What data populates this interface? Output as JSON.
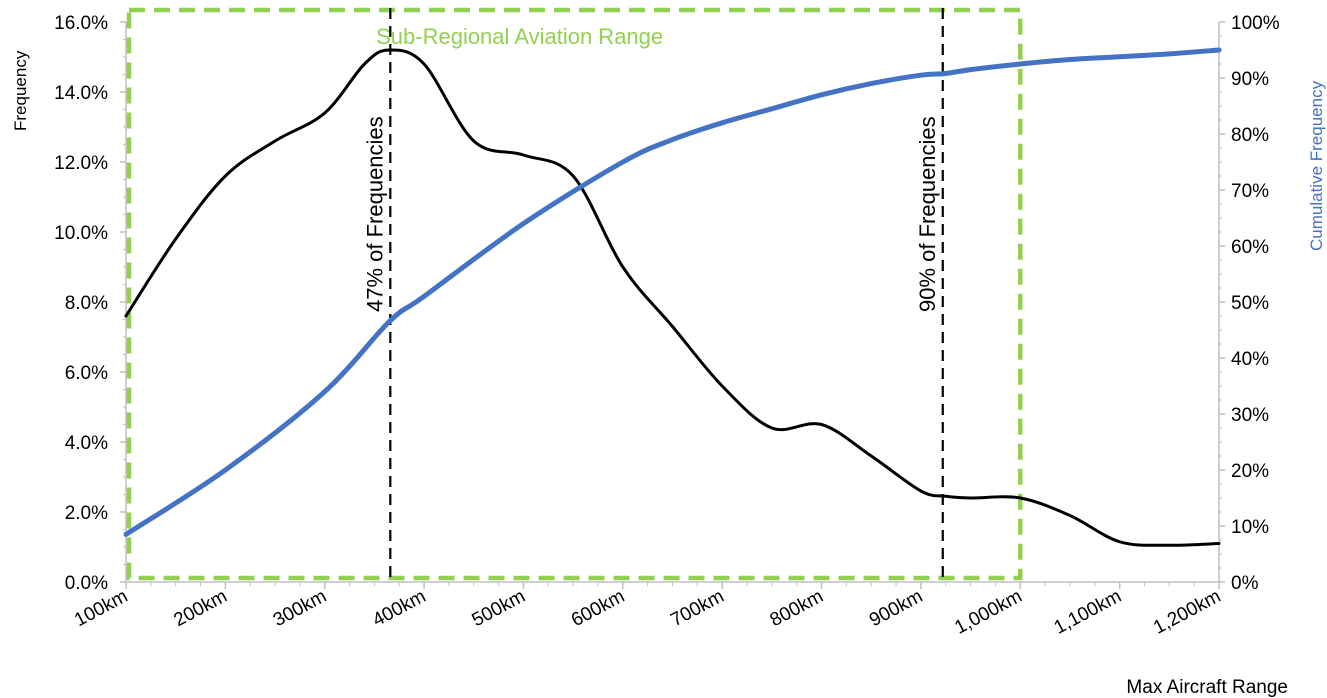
{
  "chart_data": {
    "type": "line",
    "xlabel": "Max Aircraft Range",
    "ylabel": "Frequency",
    "y2label": "Cumulative Frequency",
    "categories": [
      "100km",
      "200km",
      "300km",
      "400km",
      "500km",
      "600km",
      "700km",
      "800km",
      "900km",
      "1,000km",
      "1,100km",
      "1,200km"
    ],
    "xlim": [
      100,
      1200
    ],
    "ylim": [
      0,
      16
    ],
    "y2lim": [
      0,
      100
    ],
    "y_ticks": [
      "0.0%",
      "2.0%",
      "4.0%",
      "6.0%",
      "8.0%",
      "10.0%",
      "12.0%",
      "14.0%",
      "16.0%"
    ],
    "y2_ticks": [
      "0%",
      "10%",
      "20%",
      "30%",
      "40%",
      "50%",
      "60%",
      "70%",
      "80%",
      "90%",
      "100%"
    ],
    "grid": false,
    "series": [
      {
        "axis": "left",
        "color": "#000000",
        "x": [
          100,
          150,
          200,
          250,
          300,
          340,
          365,
          400,
          450,
          500,
          550,
          600,
          650,
          700,
          750,
          800,
          850,
          900,
          925,
          950,
          1000,
          1050,
          1100,
          1150,
          1200
        ],
        "y": [
          7.6,
          9.8,
          11.6,
          12.6,
          13.4,
          14.8,
          15.2,
          14.8,
          12.6,
          12.2,
          11.6,
          9.0,
          7.3,
          5.6,
          4.4,
          4.5,
          3.6,
          2.6,
          2.45,
          2.4,
          2.4,
          1.9,
          1.15,
          1.05,
          1.1
        ]
      },
      {
        "axis": "right",
        "color": "#4472c4",
        "x": [
          100,
          200,
          300,
          365,
          400,
          500,
          600,
          650,
          700,
          750,
          800,
          850,
          900,
          925,
          950,
          1000,
          1050,
          1100,
          1150,
          1200
        ],
        "y": [
          8.5,
          20,
          34,
          46.5,
          51,
          64,
          75,
          79,
          82,
          84.5,
          87,
          89,
          90.5,
          90.8,
          91.5,
          92.5,
          93.3,
          93.8,
          94.3,
          95
        ]
      }
    ],
    "vlines": [
      {
        "x": 366,
        "label": "47% of Frequencies"
      },
      {
        "x": 922,
        "label": "90% of Frequencies"
      }
    ],
    "region": {
      "x_start": 100,
      "x_end": 1000,
      "label": "Sub-Regional Aviation Range",
      "color": "#92d050"
    },
    "colors": {
      "left_axis_title": "#000000",
      "right_axis_title": "#4472c4",
      "axis_line": "#bfbfbf"
    }
  }
}
